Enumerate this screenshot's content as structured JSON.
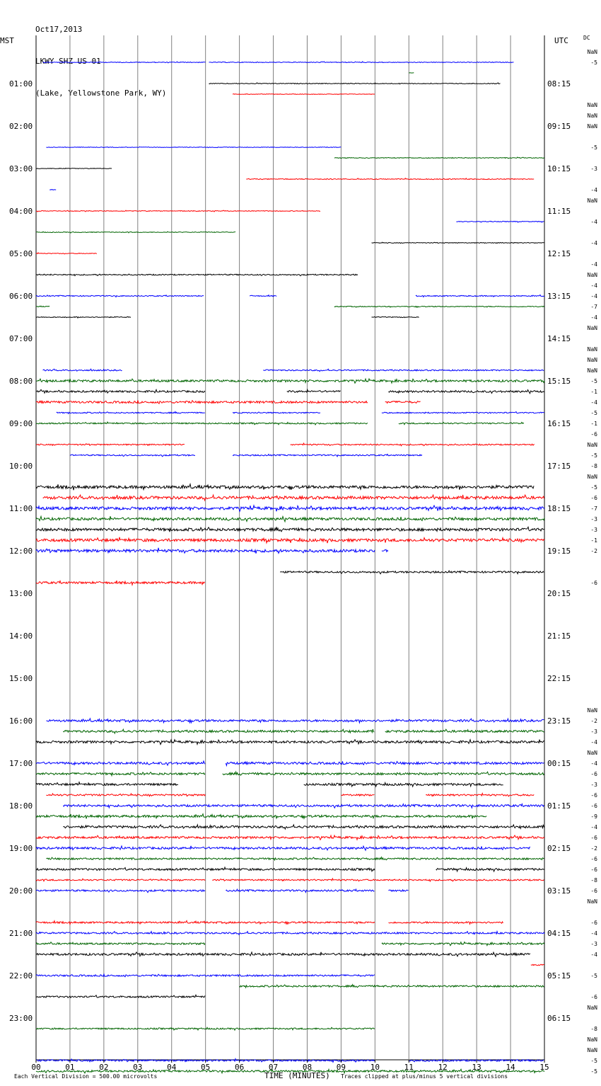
{
  "header": {
    "date": "Oct17,2013",
    "station": "LKWY SHZ US 01",
    "location": "(Lake, Yellowstone Park, WY)"
  },
  "chart_data": {
    "type": "line",
    "title": "Oct17,2013 LKWY SHZ US 01 (Lake, Yellowstone Park, WY)",
    "left_axis_label": "MST",
    "right_axis_label": "UTC",
    "dc_label": "DC",
    "xlabel": "TIME (MINUTES)",
    "xlim": [
      0,
      15
    ],
    "x_ticks": [
      "00",
      "01",
      "02",
      "03",
      "04",
      "05",
      "06",
      "07",
      "08",
      "09",
      "10",
      "11",
      "12",
      "13",
      "14",
      "15"
    ],
    "left_hour_labels": [
      "01:00",
      "02:00",
      "03:00",
      "04:00",
      "05:00",
      "06:00",
      "07:00",
      "08:00",
      "09:00",
      "10:00",
      "11:00",
      "12:00",
      "13:00",
      "14:00",
      "15:00",
      "16:00",
      "17:00",
      "18:00",
      "19:00",
      "20:00",
      "21:00",
      "22:00",
      "23:00"
    ],
    "right_hour_labels": [
      "08:15",
      "09:15",
      "10:15",
      "11:15",
      "12:15",
      "13:15",
      "14:15",
      "15:15",
      "16:15",
      "17:15",
      "18:15",
      "19:15",
      "20:15",
      "21:15",
      "22:15",
      "23:15",
      "00:15",
      "01:15",
      "02:15",
      "03:15",
      "04:15",
      "05:15",
      "06:15"
    ],
    "footer_left": "Each Vertical Division =  500.00 microvolts",
    "footer_right": "Traces clipped at plus/minus 5 vertical divisions",
    "colors": {
      "black": "#000000",
      "red": "#ff0000",
      "blue": "#0000ff",
      "green": "#006400"
    },
    "traces_per_hour": 4,
    "series": [
      {
        "row": 0,
        "color": "blue",
        "seg": [
          [
            0.2,
            5.0
          ],
          [
            5.1,
            14.1
          ]
        ],
        "amp": 0.5
      },
      {
        "row": 1,
        "color": "green",
        "seg": [
          [
            11.0,
            11.15
          ]
        ],
        "amp": 0.3
      },
      {
        "row": 2,
        "color": "black",
        "seg": [
          [
            5.1,
            13.7
          ]
        ],
        "amp": 0.5
      },
      {
        "row": 3,
        "color": "red",
        "seg": [
          [
            5.8,
            10.0
          ]
        ],
        "amp": 0.4
      },
      {
        "row": 8,
        "color": "blue",
        "seg": [
          [
            0.3,
            9.0
          ]
        ],
        "amp": 0.4
      },
      {
        "row": 9,
        "color": "green",
        "seg": [
          [
            8.8,
            15.0
          ]
        ],
        "amp": 0.5
      },
      {
        "row": 10,
        "color": "black",
        "seg": [
          [
            0.0,
            2.25
          ]
        ],
        "amp": 0.4
      },
      {
        "row": 11,
        "color": "red",
        "seg": [
          [
            6.2,
            14.7
          ]
        ],
        "amp": 0.6
      },
      {
        "row": 12,
        "color": "blue",
        "seg": [
          [
            0.4,
            0.6
          ]
        ],
        "amp": 0.3
      },
      {
        "row": 14,
        "color": "red",
        "seg": [
          [
            0.0,
            8.4
          ]
        ],
        "amp": 0.5
      },
      {
        "row": 15,
        "color": "blue",
        "seg": [
          [
            12.4,
            15.0
          ]
        ],
        "amp": 0.5
      },
      {
        "row": 16,
        "color": "green",
        "seg": [
          [
            0.0,
            5.9
          ]
        ],
        "amp": 0.5
      },
      {
        "row": 17,
        "color": "black",
        "seg": [
          [
            9.9,
            15.0
          ]
        ],
        "amp": 0.5
      },
      {
        "row": 18,
        "color": "red",
        "seg": [
          [
            0.0,
            1.8
          ]
        ],
        "amp": 0.5
      },
      {
        "row": 20,
        "color": "black",
        "seg": [
          [
            0.0,
            9.5
          ]
        ],
        "amp": 0.8
      },
      {
        "row": 22,
        "color": "blue",
        "seg": [
          [
            0.0,
            4.95
          ],
          [
            6.3,
            7.1
          ],
          [
            11.2,
            15.0
          ]
        ],
        "amp": 0.7
      },
      {
        "row": 23,
        "color": "green",
        "seg": [
          [
            0.0,
            0.4
          ],
          [
            8.8,
            15.0
          ]
        ],
        "amp": 0.6
      },
      {
        "row": 24,
        "color": "black",
        "seg": [
          [
            0.0,
            2.8
          ],
          [
            9.9,
            11.3
          ]
        ],
        "amp": 0.6
      },
      {
        "row": 29,
        "color": "blue",
        "seg": [
          [
            0.2,
            2.55
          ],
          [
            6.7,
            15.0
          ]
        ],
        "amp": 0.9
      },
      {
        "row": 30,
        "color": "green",
        "seg": [
          [
            0.0,
            15.0
          ]
        ],
        "amp": 1.5
      },
      {
        "row": 31,
        "color": "black",
        "seg": [
          [
            0.0,
            5.0
          ],
          [
            7.4,
            9.0
          ],
          [
            10.4,
            15.0
          ]
        ],
        "amp": 1.3
      },
      {
        "row": 32,
        "color": "red",
        "seg": [
          [
            0.0,
            9.8
          ],
          [
            10.3,
            11.35
          ]
        ],
        "amp": 1.5
      },
      {
        "row": 33,
        "color": "blue",
        "seg": [
          [
            0.6,
            5.0
          ],
          [
            5.8,
            8.4
          ],
          [
            10.2,
            15.0
          ]
        ],
        "amp": 0.8
      },
      {
        "row": 34,
        "color": "green",
        "seg": [
          [
            0.0,
            9.8
          ],
          [
            10.7,
            14.4
          ]
        ],
        "amp": 0.9
      },
      {
        "row": 36,
        "color": "red",
        "seg": [
          [
            0.0,
            4.4
          ],
          [
            7.5,
            14.7
          ]
        ],
        "amp": 0.9
      },
      {
        "row": 37,
        "color": "blue",
        "seg": [
          [
            1.0,
            4.7
          ],
          [
            5.8,
            11.4
          ]
        ],
        "amp": 0.9
      },
      {
        "row": 40,
        "color": "black",
        "seg": [
          [
            0.0,
            14.7
          ]
        ],
        "amp": 2.0
      },
      {
        "row": 41,
        "color": "red",
        "seg": [
          [
            0.2,
            15.0
          ]
        ],
        "amp": 2.0
      },
      {
        "row": 42,
        "color": "blue",
        "seg": [
          [
            0.0,
            15.0
          ]
        ],
        "amp": 2.0
      },
      {
        "row": 43,
        "color": "green",
        "seg": [
          [
            0.0,
            15.0
          ]
        ],
        "amp": 1.8
      },
      {
        "row": 44,
        "color": "black",
        "seg": [
          [
            0.0,
            15.0
          ]
        ],
        "amp": 2.0
      },
      {
        "row": 45,
        "color": "red",
        "seg": [
          [
            0.0,
            15.0
          ]
        ],
        "amp": 2.0
      },
      {
        "row": 46,
        "color": "blue",
        "seg": [
          [
            0.0,
            10.0
          ],
          [
            10.2,
            10.4
          ]
        ],
        "amp": 2.0
      },
      {
        "row": 48,
        "color": "black",
        "seg": [
          [
            7.2,
            15.0
          ]
        ],
        "amp": 1.2
      },
      {
        "row": 49,
        "color": "red",
        "seg": [
          [
            0.0,
            5.0
          ]
        ],
        "amp": 1.5
      },
      {
        "row": 62,
        "color": "blue",
        "seg": [
          [
            0.3,
            15.0
          ]
        ],
        "amp": 1.5
      },
      {
        "row": 63,
        "color": "green",
        "seg": [
          [
            0.8,
            10.0
          ],
          [
            10.3,
            15.0
          ]
        ],
        "amp": 1.5
      },
      {
        "row": 64,
        "color": "black",
        "seg": [
          [
            0.0,
            15.0
          ]
        ],
        "amp": 1.6
      },
      {
        "row": 66,
        "color": "blue",
        "seg": [
          [
            0.0,
            5.0
          ],
          [
            5.6,
            15.0
          ]
        ],
        "amp": 1.6
      },
      {
        "row": 67,
        "color": "green",
        "seg": [
          [
            0.0,
            5.0
          ],
          [
            5.5,
            15.0
          ]
        ],
        "amp": 1.5
      },
      {
        "row": 68,
        "color": "black",
        "seg": [
          [
            0.0,
            4.2
          ],
          [
            7.9,
            13.8
          ]
        ],
        "amp": 1.5
      },
      {
        "row": 69,
        "color": "red",
        "seg": [
          [
            0.3,
            5.0
          ],
          [
            9.0,
            10.0
          ],
          [
            11.5,
            14.7
          ]
        ],
        "amp": 1.2
      },
      {
        "row": 70,
        "color": "blue",
        "seg": [
          [
            0.8,
            15.0
          ]
        ],
        "amp": 1.5
      },
      {
        "row": 71,
        "color": "green",
        "seg": [
          [
            0.0,
            13.3
          ]
        ],
        "amp": 1.6
      },
      {
        "row": 72,
        "color": "black",
        "seg": [
          [
            0.8,
            15.0
          ]
        ],
        "amp": 1.6
      },
      {
        "row": 73,
        "color": "red",
        "seg": [
          [
            0.0,
            15.0
          ]
        ],
        "amp": 1.5
      },
      {
        "row": 74,
        "color": "blue",
        "seg": [
          [
            0.0,
            14.6
          ]
        ],
        "amp": 1.5
      },
      {
        "row": 75,
        "color": "green",
        "seg": [
          [
            0.3,
            15.0
          ]
        ],
        "amp": 1.2
      },
      {
        "row": 76,
        "color": "black",
        "seg": [
          [
            0.0,
            10.0
          ],
          [
            11.8,
            15.0
          ]
        ],
        "amp": 1.4
      },
      {
        "row": 77,
        "color": "red",
        "seg": [
          [
            0.0,
            5.0
          ],
          [
            5.2,
            15.0
          ]
        ],
        "amp": 1.0
      },
      {
        "row": 78,
        "color": "blue",
        "seg": [
          [
            0.0,
            5.0
          ],
          [
            5.6,
            10.0
          ],
          [
            10.4,
            11.0
          ]
        ],
        "amp": 1.2
      },
      {
        "row": 81,
        "color": "red",
        "seg": [
          [
            0.0,
            10.0
          ],
          [
            10.4,
            13.8
          ]
        ],
        "amp": 1.2
      },
      {
        "row": 82,
        "color": "blue",
        "seg": [
          [
            0.0,
            15.0
          ]
        ],
        "amp": 1.2
      },
      {
        "row": 83,
        "color": "green",
        "seg": [
          [
            0.0,
            5.0
          ],
          [
            10.2,
            15.0
          ]
        ],
        "amp": 1.2
      },
      {
        "row": 84,
        "color": "black",
        "seg": [
          [
            0.0,
            14.6
          ]
        ],
        "amp": 1.5
      },
      {
        "row": 85,
        "color": "red",
        "seg": [
          [
            14.6,
            15.0
          ]
        ],
        "amp": 0.8
      },
      {
        "row": 86,
        "color": "blue",
        "seg": [
          [
            0.0,
            10.0
          ]
        ],
        "amp": 1.2
      },
      {
        "row": 87,
        "color": "green",
        "seg": [
          [
            6.0,
            15.0
          ]
        ],
        "amp": 1.2
      },
      {
        "row": 88,
        "color": "black",
        "seg": [
          [
            0.0,
            5.0
          ]
        ],
        "amp": 1.2
      },
      {
        "row": 91,
        "color": "green",
        "seg": [
          [
            0.0,
            10.0
          ]
        ],
        "amp": 1.0
      },
      {
        "row": 94,
        "color": "blue",
        "seg": [
          [
            0.0,
            10.0
          ],
          [
            11.0,
            15.0
          ]
        ],
        "amp": 1.2
      },
      {
        "row": 95,
        "color": "green",
        "seg": [
          [
            0.0,
            15.0
          ]
        ],
        "amp": 1.3
      }
    ],
    "dc_offsets": [
      {
        "row": -1,
        "text": "NaN"
      },
      {
        "row": 0,
        "text": "-5"
      },
      {
        "row": 4,
        "text": "NaN"
      },
      {
        "row": 5,
        "text": "NaN"
      },
      {
        "row": 6,
        "text": "NaN"
      },
      {
        "row": 8,
        "text": "-5"
      },
      {
        "row": 10,
        "text": "-3"
      },
      {
        "row": 12,
        "text": "-4"
      },
      {
        "row": 13,
        "text": "NaN"
      },
      {
        "row": 15,
        "text": "-4"
      },
      {
        "row": 17,
        "text": "-4"
      },
      {
        "row": 19,
        "text": "-4"
      },
      {
        "row": 20,
        "text": "NaN"
      },
      {
        "row": 21,
        "text": "-4"
      },
      {
        "row": 22,
        "text": "-4"
      },
      {
        "row": 23,
        "text": "-7"
      },
      {
        "row": 24,
        "text": "-4"
      },
      {
        "row": 25,
        "text": "NaN"
      },
      {
        "row": 27,
        "text": "NaN"
      },
      {
        "row": 28,
        "text": "NaN"
      },
      {
        "row": 29,
        "text": "NaN"
      },
      {
        "row": 30,
        "text": "-5"
      },
      {
        "row": 31,
        "text": "-1"
      },
      {
        "row": 32,
        "text": "-4"
      },
      {
        "row": 33,
        "text": "-5"
      },
      {
        "row": 34,
        "text": "-1"
      },
      {
        "row": 35,
        "text": "-6"
      },
      {
        "row": 36,
        "text": "NaN"
      },
      {
        "row": 37,
        "text": "-5"
      },
      {
        "row": 38,
        "text": "-8"
      },
      {
        "row": 39,
        "text": "NaN"
      },
      {
        "row": 40,
        "text": "-5"
      },
      {
        "row": 41,
        "text": "-6"
      },
      {
        "row": 42,
        "text": "-7"
      },
      {
        "row": 43,
        "text": "-3"
      },
      {
        "row": 44,
        "text": "-3"
      },
      {
        "row": 45,
        "text": "-1"
      },
      {
        "row": 46,
        "text": "-2"
      },
      {
        "row": 49,
        "text": "-6"
      },
      {
        "row": 61,
        "text": "NaN"
      },
      {
        "row": 62,
        "text": "-2"
      },
      {
        "row": 63,
        "text": "-3"
      },
      {
        "row": 64,
        "text": "-4"
      },
      {
        "row": 65,
        "text": "NaN"
      },
      {
        "row": 66,
        "text": "-4"
      },
      {
        "row": 67,
        "text": "-6"
      },
      {
        "row": 68,
        "text": "-3"
      },
      {
        "row": 69,
        "text": "-6"
      },
      {
        "row": 70,
        "text": "-6"
      },
      {
        "row": 71,
        "text": "-9"
      },
      {
        "row": 72,
        "text": "-4"
      },
      {
        "row": 73,
        "text": "-6"
      },
      {
        "row": 74,
        "text": "-2"
      },
      {
        "row": 75,
        "text": "-6"
      },
      {
        "row": 76,
        "text": "-6"
      },
      {
        "row": 77,
        "text": "-8"
      },
      {
        "row": 78,
        "text": "-6"
      },
      {
        "row": 79,
        "text": "NaN"
      },
      {
        "row": 81,
        "text": "-6"
      },
      {
        "row": 82,
        "text": "-4"
      },
      {
        "row": 83,
        "text": "-3"
      },
      {
        "row": 84,
        "text": "-4"
      },
      {
        "row": 86,
        "text": "-5"
      },
      {
        "row": 88,
        "text": "-6"
      },
      {
        "row": 89,
        "text": "NaN"
      },
      {
        "row": 91,
        "text": "-8"
      },
      {
        "row": 92,
        "text": "NaN"
      },
      {
        "row": 93,
        "text": "NaN"
      },
      {
        "row": 94,
        "text": "-5"
      },
      {
        "row": 95,
        "text": "-5"
      }
    ]
  }
}
